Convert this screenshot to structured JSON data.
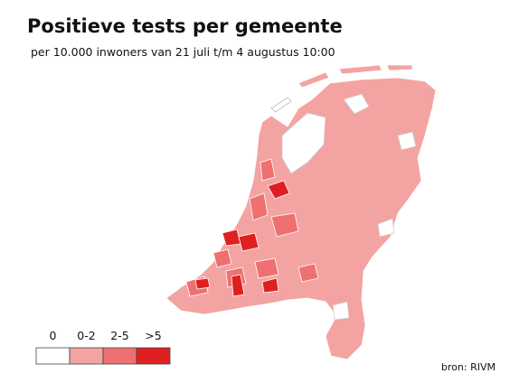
{
  "title": "Positieve tests per gemeente",
  "subtitle": "per 10.000 inwoners van 21 juli t/m 4 augustus 10:00",
  "legend": [
    {
      "label": "0",
      "color": "#ffffff"
    },
    {
      "label": "0-2",
      "color": "#f4a3a3"
    },
    {
      "label": "2-5",
      "color": "#ee7070"
    },
    {
      "label": ">5",
      "color": "#e02020"
    }
  ],
  "source": "bron: RIVM"
}
